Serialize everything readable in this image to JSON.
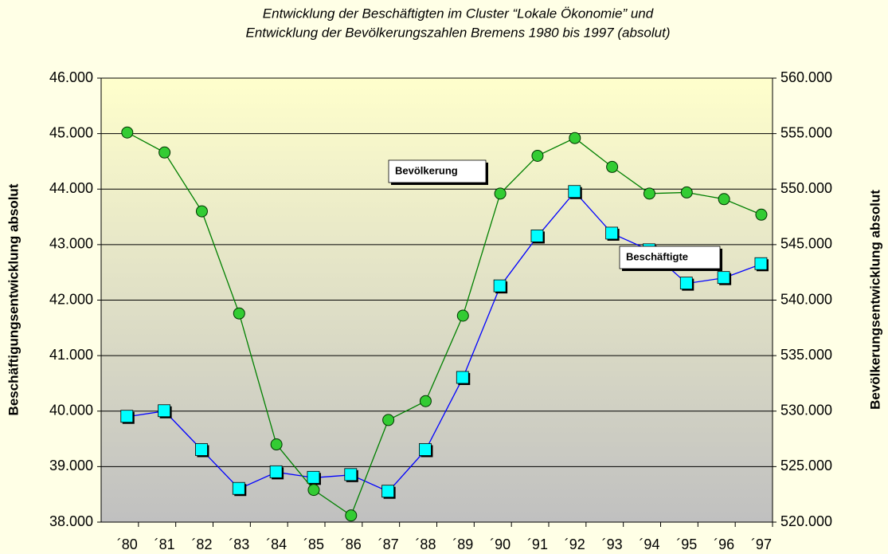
{
  "chart_data": {
    "type": "line",
    "title": [
      "Entwicklung der Beschäftigten im Cluster “Lokale Ökonomie” und",
      "Entwicklung der Bevölkerungszahlen Bremens 1980 bis 1997 (absolut)"
    ],
    "y_label": "Beschäftigungsentwicklung absolut",
    "y2_label": "Bevölkerungsentwicklung absolut",
    "categories": [
      "´80",
      "´81",
      "´82",
      "´83",
      "´84",
      "´85",
      "´86",
      "´87",
      "´88",
      "´89",
      "´90",
      "´91",
      "´92",
      "´93",
      "´94",
      "´95",
      "´96",
      "´97"
    ],
    "series": [
      {
        "name": "Beschäftigte",
        "color": "#0000ff",
        "marker_color": "#00ffff",
        "marker": "square",
        "axis": "y",
        "values": [
          39900,
          40000,
          39300,
          38600,
          38900,
          38800,
          38850,
          38550,
          39300,
          40600,
          42250,
          43150,
          43950,
          43200,
          42900,
          42300,
          42400,
          42650
        ]
      },
      {
        "name": "Bevölkerung",
        "color": "#008000",
        "marker_color": "#33cc33",
        "marker": "circle",
        "axis": "y2",
        "values": [
          555100,
          553300,
          548000,
          538800,
          527000,
          522900,
          520600,
          529200,
          530900,
          538600,
          549600,
          553000,
          554600,
          552000,
          549600,
          549700,
          549100,
          547700
        ]
      }
    ],
    "ylim": [
      38000,
      46000
    ],
    "yticks": [
      {
        "value": 38000,
        "label": "38.000"
      },
      {
        "value": 39000,
        "label": "39.000"
      },
      {
        "value": 40000,
        "label": "40.000"
      },
      {
        "value": 41000,
        "label": "41.000"
      },
      {
        "value": 42000,
        "label": "42.000"
      },
      {
        "value": 43000,
        "label": "43.000"
      },
      {
        "value": 44000,
        "label": "44.000"
      },
      {
        "value": 45000,
        "label": "45.000"
      },
      {
        "value": 46000,
        "label": "46.000"
      }
    ],
    "y2lim": [
      520000,
      560000
    ],
    "y2ticks": [
      {
        "value": 520000,
        "label": "520.000"
      },
      {
        "value": 525000,
        "label": "525.000"
      },
      {
        "value": 530000,
        "label": "530.000"
      },
      {
        "value": 535000,
        "label": "535.000"
      },
      {
        "value": 540000,
        "label": "540.000"
      },
      {
        "value": 545000,
        "label": "545.000"
      },
      {
        "value": 550000,
        "label": "550.000"
      },
      {
        "value": 555000,
        "label": "555.000"
      },
      {
        "value": 560000,
        "label": "560.000"
      }
    ],
    "grid": true
  }
}
